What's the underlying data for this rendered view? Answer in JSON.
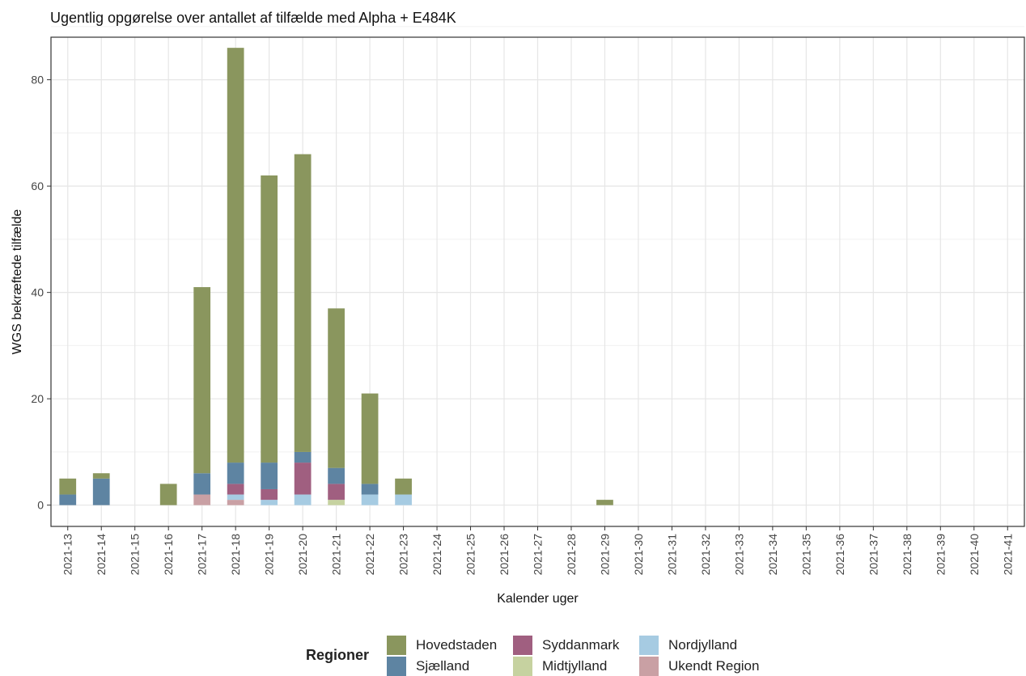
{
  "chart_data": {
    "type": "bar",
    "stacked": true,
    "title": "Ugentlig opgørelse over antallet af tilfælde med Alpha + E484K",
    "xlabel": "Kalender uger",
    "ylabel": "WGS bekræftede tilfælde",
    "ylim": [
      -4,
      88
    ],
    "yticks": [
      0,
      20,
      40,
      60,
      80
    ],
    "grid": true,
    "legend_title": "Regioner",
    "legend_position": "bottom",
    "categories": [
      "2021-13",
      "2021-14",
      "2021-15",
      "2021-16",
      "2021-17",
      "2021-18",
      "2021-19",
      "2021-20",
      "2021-21",
      "2021-22",
      "2021-23",
      "2021-24",
      "2021-25",
      "2021-26",
      "2021-27",
      "2021-28",
      "2021-29",
      "2021-30",
      "2021-31",
      "2021-32",
      "2021-33",
      "2021-34",
      "2021-35",
      "2021-36",
      "2021-37",
      "2021-38",
      "2021-39",
      "2021-40",
      "2021-41"
    ],
    "series": [
      {
        "name": "Ukendt Region",
        "color": "#c9a0a4",
        "values": [
          0,
          0,
          0,
          0,
          2,
          1,
          0,
          0,
          0,
          0,
          0,
          0,
          0,
          0,
          0,
          0,
          0,
          0,
          0,
          0,
          0,
          0,
          0,
          0,
          0,
          0,
          0,
          0,
          0
        ]
      },
      {
        "name": "Midtjylland",
        "color": "#c6d2a0",
        "values": [
          0,
          0,
          0,
          0,
          0,
          0,
          0,
          0,
          1,
          0,
          0,
          0,
          0,
          0,
          0,
          0,
          0,
          0,
          0,
          0,
          0,
          0,
          0,
          0,
          0,
          0,
          0,
          0,
          0
        ]
      },
      {
        "name": "Nordjylland",
        "color": "#a6cbe2",
        "values": [
          0,
          0,
          0,
          0,
          0,
          1,
          1,
          2,
          0,
          2,
          2,
          0,
          0,
          0,
          0,
          0,
          0,
          0,
          0,
          0,
          0,
          0,
          0,
          0,
          0,
          0,
          0,
          0,
          0
        ]
      },
      {
        "name": "Syddanmark",
        "color": "#a05f80",
        "values": [
          0,
          0,
          0,
          0,
          0,
          2,
          2,
          6,
          3,
          0,
          0,
          0,
          0,
          0,
          0,
          0,
          0,
          0,
          0,
          0,
          0,
          0,
          0,
          0,
          0,
          0,
          0,
          0,
          0
        ]
      },
      {
        "name": "Sjælland",
        "color": "#5e84a2",
        "values": [
          2,
          5,
          0,
          0,
          4,
          4,
          5,
          2,
          3,
          2,
          0,
          0,
          0,
          0,
          0,
          0,
          0,
          0,
          0,
          0,
          0,
          0,
          0,
          0,
          0,
          0,
          0,
          0,
          0
        ]
      },
      {
        "name": "Hovedstaden",
        "color": "#8a965e",
        "values": [
          3,
          1,
          0,
          4,
          35,
          78,
          54,
          56,
          30,
          17,
          3,
          0,
          0,
          0,
          0,
          0,
          1,
          0,
          0,
          0,
          0,
          0,
          0,
          0,
          0,
          0,
          0,
          0,
          0
        ]
      }
    ]
  },
  "legend": {
    "title": "Regioner",
    "items": [
      {
        "label": "Hovedstaden",
        "color": "#8a965e"
      },
      {
        "label": "Sjælland",
        "color": "#5e84a2"
      },
      {
        "label": "Syddanmark",
        "color": "#a05f80"
      },
      {
        "label": "Midtjylland",
        "color": "#c6d2a0"
      },
      {
        "label": "Nordjylland",
        "color": "#a6cbe2"
      },
      {
        "label": "Ukendt Region",
        "color": "#c9a0a4"
      }
    ]
  }
}
